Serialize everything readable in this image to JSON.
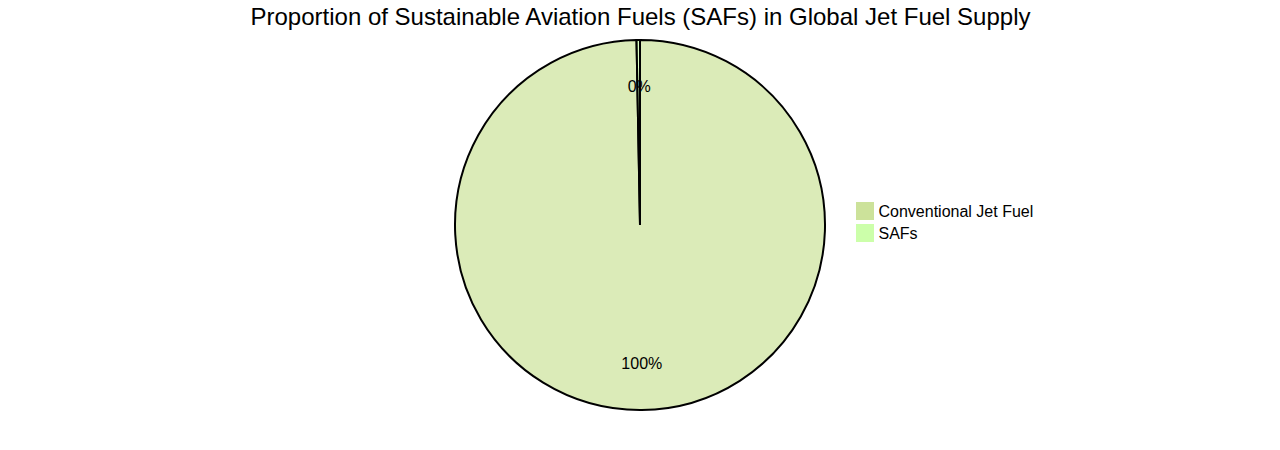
{
  "chart_data": {
    "type": "pie",
    "title": "Proportion of Sustainable Aviation Fuels (SAFs) in Global Jet Fuel Supply",
    "categories": [
      "Conventional Jet Fuel",
      "SAFs"
    ],
    "values": [
      99.7,
      0.3
    ],
    "value_labels": [
      "100%",
      "0%"
    ],
    "colors": [
      "#cce29a",
      "#ccffaa"
    ],
    "data_labels": true,
    "legend": "right"
  }
}
